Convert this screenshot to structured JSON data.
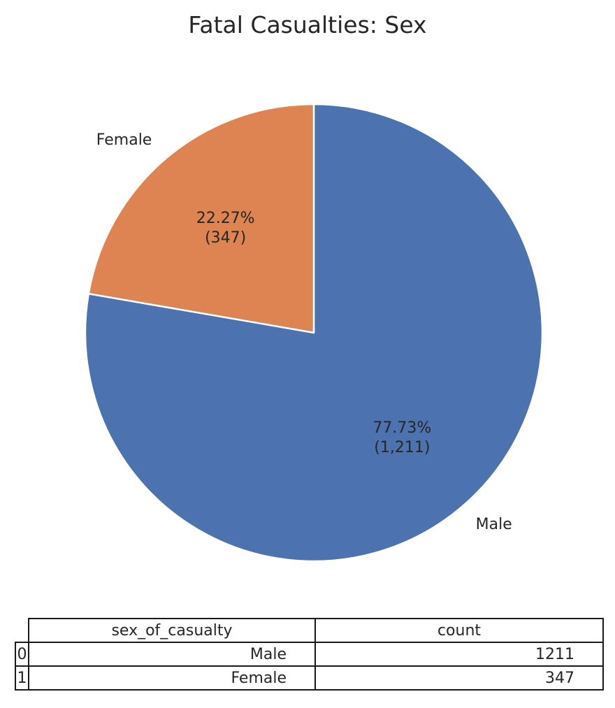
{
  "chart_data": {
    "type": "pie",
    "title": "Fatal Casualties: Sex",
    "labels": [
      "Male",
      "Female"
    ],
    "values": [
      1211,
      347
    ],
    "percent_labels": [
      "77.73%",
      "22.27%"
    ],
    "count_labels": [
      "(1,211)",
      "(347)"
    ],
    "colors": [
      "#4c72b0",
      "#dd8452"
    ],
    "start_angle_deg": 90,
    "direction": "clockwise"
  },
  "table": {
    "columns": [
      "sex_of_casualty",
      "count"
    ],
    "rows": [
      {
        "index": "0",
        "sex_of_casualty": "Male",
        "count": "1211"
      },
      {
        "index": "1",
        "sex_of_casualty": "Female",
        "count": "347"
      }
    ]
  }
}
